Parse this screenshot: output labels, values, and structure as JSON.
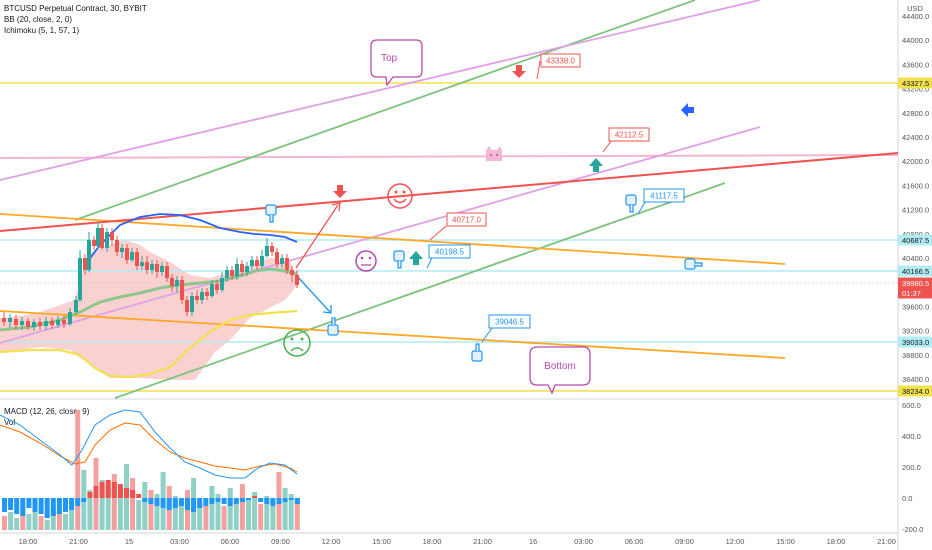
{
  "legend": {
    "title": "BTCUSD Perpetual Contract, 30, BYBIT",
    "bb": "BB (20, close, 2, 0)",
    "ichimoku": "Ichimoku (5, 1, 57, 1)",
    "macd": "MACD (12, 26, close, 9)",
    "vol": "Vol"
  },
  "currency": "USD",
  "price_axis": {
    "ticks": [
      "44400.0",
      "44000.0",
      "43600.0",
      "43200.0",
      "42800.0",
      "42400.0",
      "42000.0",
      "41600.0",
      "41200.0",
      "40800.0",
      "40400.0",
      "40000.0",
      "39600.0",
      "39200.0",
      "38800.0",
      "38400.0"
    ],
    "level_labels": [
      {
        "text": "43327.5",
        "color": "#f2e14c"
      },
      {
        "text": "40687.5",
        "color": "#b2ebf2"
      },
      {
        "text": "40166.5",
        "color": "#b2ebf2"
      },
      {
        "text": "39980.5",
        "color": "#ef5350"
      },
      {
        "text": "01:37",
        "color": "#ef5350"
      },
      {
        "text": "39033.0",
        "color": "#b2ebf2"
      },
      {
        "text": "38234.0",
        "color": "#f2e14c"
      }
    ]
  },
  "macd_axis": {
    "ticks": [
      "600.0",
      "400.0",
      "200.0",
      "0.0",
      "-200.0"
    ]
  },
  "time_axis": {
    "ticks": [
      "18:00",
      "21:00",
      "15",
      "03:00",
      "06:00",
      "09:00",
      "12:00",
      "15:00",
      "18:00",
      "21:00",
      "16",
      "03:00",
      "06:00",
      "09:00",
      "12:00",
      "15:00",
      "18:00",
      "21:00"
    ]
  },
  "annotations": {
    "top": "Top",
    "bottom": "Bottom",
    "callout_43338": "43338.0",
    "callout_42112": "42112.5",
    "callout_41117": "41117.5",
    "callout_40717": "40717.0",
    "callout_40198": "40198.5",
    "callout_39046": "39046.5"
  },
  "colors": {
    "up": "#26a69a",
    "down": "#ef5350",
    "up_light": "#8fd1c7",
    "down_light": "#f5a0a0",
    "bb_band": "#f8c9c9",
    "green_channel": "#7cc47c",
    "purple_channel": "#e0a0e6",
    "orange_channel": "#ffa726",
    "red_trend": "#ef5350",
    "pink_level": "#f3b7d6",
    "yellow_level": "#f2e14c",
    "cyan_level": "#b2ebf2",
    "label_blue": "#2196f3",
    "label_red": "#ef5350"
  }
}
